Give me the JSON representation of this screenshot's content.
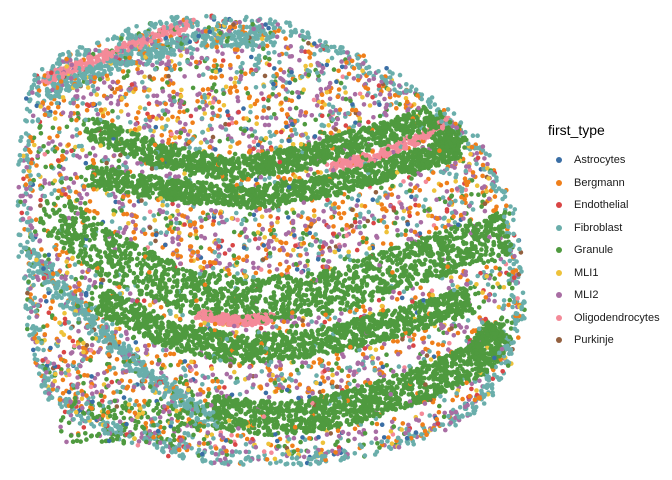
{
  "chart_data": {
    "type": "scatter",
    "title": "",
    "xlabel": "",
    "ylabel": "",
    "grid": false,
    "legend_placement": "right",
    "legend_title": "first_type",
    "series": [
      {
        "name": "Astrocytes",
        "color": "#3a6ea5",
        "share": 0.02
      },
      {
        "name": "Bergmann",
        "color": "#ef7f1a",
        "share": 0.11
      },
      {
        "name": "Endothelial",
        "color": "#d94545",
        "share": 0.03
      },
      {
        "name": "Fibroblast",
        "color": "#6aaeab",
        "share": 0.17
      },
      {
        "name": "Granule",
        "color": "#4f9a3f",
        "share": 0.42
      },
      {
        "name": "MLI1",
        "color": "#eec23a",
        "share": 0.05
      },
      {
        "name": "MLI2",
        "color": "#a86da3",
        "share": 0.12
      },
      {
        "name": "Oligodendrocytes",
        "color": "#f48a98",
        "share": 0.06
      },
      {
        "name": "Purkinje",
        "color": "#93603f",
        "share": 0.02
      }
    ]
  }
}
